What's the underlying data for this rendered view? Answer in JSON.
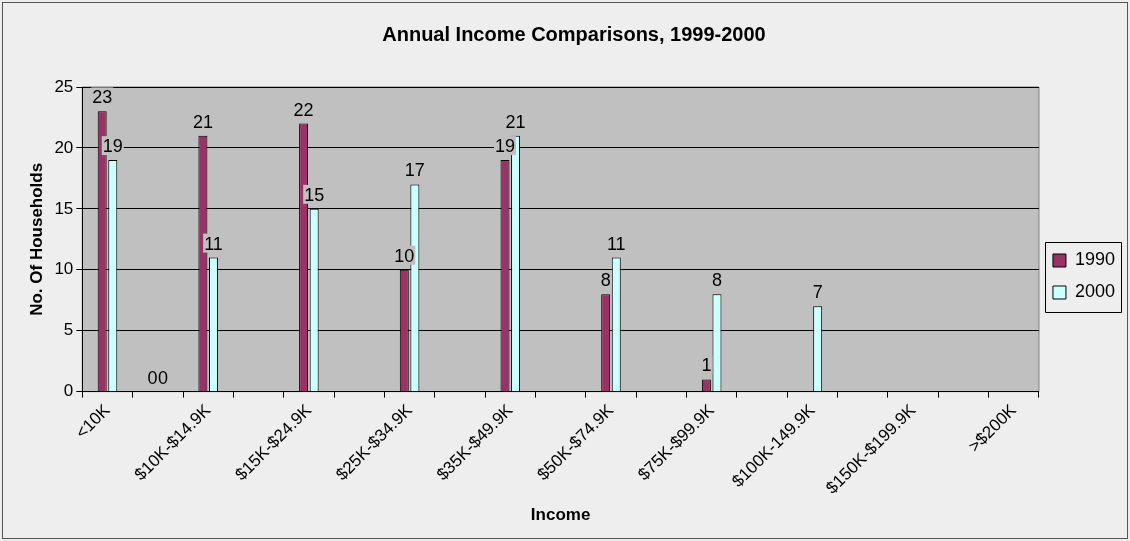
{
  "chart_data": {
    "type": "bar",
    "title": "Annual Income Comparisons, 1999-2000",
    "xlabel": "Income",
    "ylabel": "No. Of Households",
    "categories": [
      "<10K",
      null,
      "$10K-$14.9K",
      null,
      "$15K-$24.9K",
      null,
      "$25K-$34.9K",
      null,
      "$35K-$49.9K",
      null,
      "$50K-$74.9K",
      null,
      "$75K-$99.9K",
      null,
      "$100K-149.9K",
      null,
      "$150K-$199.9K",
      null,
      ">$200K"
    ],
    "series": [
      {
        "name": "1990",
        "color": "#993366",
        "values": [
          23,
          0,
          21,
          null,
          22,
          null,
          10,
          null,
          19,
          null,
          8,
          null,
          1,
          null,
          null,
          null,
          null,
          null,
          null
        ]
      },
      {
        "name": "2000",
        "color": "#ccffff",
        "values": [
          19,
          0,
          11,
          null,
          15,
          null,
          17,
          null,
          21,
          null,
          11,
          null,
          8,
          null,
          7,
          null,
          null,
          null,
          null
        ]
      }
    ],
    "ylim": [
      0,
      25
    ],
    "yticks": [
      0,
      5,
      10,
      15,
      20,
      25
    ],
    "grid": "y",
    "legend": "right",
    "data_labels": true
  }
}
